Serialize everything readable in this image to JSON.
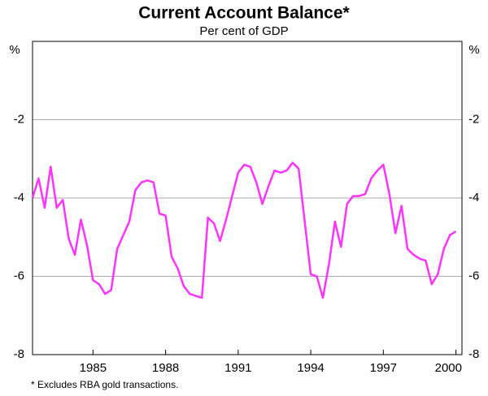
{
  "chart_data": {
    "type": "line",
    "title": "Current Account Balance*",
    "subtitle": "Per cent of GDP",
    "y_label": "%",
    "footnote": "* Excludes RBA gold transactions.",
    "x": [
      1982.5,
      1982.75,
      1983,
      1983.25,
      1983.5,
      1983.75,
      1984,
      1984.25,
      1984.5,
      1984.75,
      1985,
      1985.25,
      1985.5,
      1985.75,
      1986,
      1986.25,
      1986.5,
      1986.75,
      1987,
      1987.25,
      1987.5,
      1987.75,
      1988,
      1988.25,
      1988.5,
      1988.75,
      1989,
      1989.25,
      1989.5,
      1989.75,
      1990,
      1990.25,
      1990.5,
      1990.75,
      1991,
      1991.25,
      1991.5,
      1991.75,
      1992,
      1992.25,
      1992.5,
      1992.75,
      1993,
      1993.25,
      1993.5,
      1993.75,
      1994,
      1994.25,
      1994.5,
      1994.75,
      1995,
      1995.25,
      1995.5,
      1995.75,
      1996,
      1996.25,
      1996.5,
      1996.75,
      1997,
      1997.25,
      1997.5,
      1997.75,
      1998,
      1998.25,
      1998.5,
      1998.75,
      1999,
      1999.25,
      1999.5,
      1999.75,
      2000,
      2000.25
    ],
    "series": [
      {
        "name": "Current account balance",
        "color": "#ff33ff",
        "values": [
          -4.0,
          -3.5,
          -4.25,
          -3.2,
          -4.25,
          -4.05,
          -5.05,
          -5.45,
          -4.55,
          -5.2,
          -6.1,
          -6.2,
          -6.45,
          -6.35,
          -5.3,
          -4.95,
          -4.6,
          -3.8,
          -3.6,
          -3.55,
          -3.6,
          -4.4,
          -4.45,
          -5.5,
          -5.8,
          -6.25,
          -6.45,
          -6.5,
          -6.55,
          -4.5,
          -4.65,
          -5.1,
          -4.55,
          -3.95,
          -3.35,
          -3.15,
          -3.2,
          -3.6,
          -4.15,
          -3.7,
          -3.3,
          -3.35,
          -3.3,
          -3.1,
          -3.25,
          -4.6,
          -5.95,
          -6.0,
          -6.55,
          -5.7,
          -4.6,
          -5.25,
          -4.15,
          -3.95,
          -3.95,
          -3.9,
          -3.5,
          -3.3,
          -3.15,
          -3.9,
          -4.9,
          -4.2,
          -5.3,
          -5.45,
          -5.55,
          -5.6,
          -6.2,
          -5.95,
          -5.3,
          -4.95,
          -4.85,
          null
        ]
      }
    ],
    "xlim": [
      1982.5,
      2000.25
    ],
    "xticks": [
      1985,
      1988,
      1991,
      1994,
      1997,
      2000
    ],
    "ylim": [
      -8,
      0
    ],
    "yticks": [
      -2,
      -4,
      -6,
      -8
    ],
    "grid": true
  }
}
